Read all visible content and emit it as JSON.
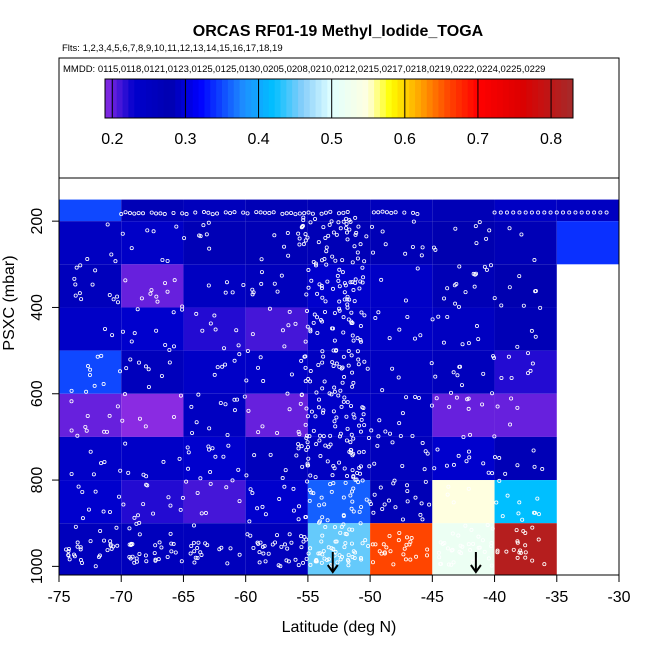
{
  "chart_data": {
    "type": "heatmap",
    "title": "ORCAS RF01-19 Methyl_Iodide_TOGA",
    "flights_label": "Flts: 1,2,3,4,5,6,7,8,9,10,11,12,13,14,15,16,17,18,19",
    "dates_label": "MMDD: 0115,0118,0121,0123,0125,0125,0130,0205,0208,0210,0212,0215,0217,0218,0219,0222,0224,0225,0229",
    "xlabel": "Latitude (deg N)",
    "ylabel": "PSXC (mbar)",
    "xlim": [
      -75,
      -30
    ],
    "ylim": [
      1020,
      100
    ],
    "y_reversed": true,
    "x_ticks": [
      -75,
      -70,
      -65,
      -60,
      -55,
      -50,
      -45,
      -40,
      -35,
      -30
    ],
    "x_tick_labels": [
      "-75",
      "-70",
      "-65",
      "-60",
      "-55",
      "-50",
      "-45",
      "-40",
      "-35",
      "-30"
    ],
    "y_ticks": [
      200,
      400,
      600,
      800,
      1000
    ],
    "y_tick_labels": [
      "200",
      "400",
      "600",
      "800",
      "1000"
    ],
    "colorbar": {
      "range": [
        0.19,
        0.83
      ],
      "ticks": [
        0.2,
        0.3,
        0.4,
        0.5,
        0.6,
        0.7,
        0.8
      ],
      "tick_labels": [
        "0.2",
        "0.3",
        "0.4",
        "0.5",
        "0.6",
        "0.7",
        "0.8"
      ],
      "stops": [
        [
          0.19,
          "#8a2be2"
        ],
        [
          0.23,
          "#0000cd"
        ],
        [
          0.28,
          "#0000b0"
        ],
        [
          0.32,
          "#0000ff"
        ],
        [
          0.38,
          "#1e90ff"
        ],
        [
          0.42,
          "#00bfff"
        ],
        [
          0.46,
          "#87cefa"
        ],
        [
          0.5,
          "#e0ffff"
        ],
        [
          0.55,
          "#ffffe0"
        ],
        [
          0.58,
          "#ffff00"
        ],
        [
          0.62,
          "#ffa500"
        ],
        [
          0.66,
          "#ff4500"
        ],
        [
          0.7,
          "#ff0000"
        ],
        [
          0.76,
          "#dc0000"
        ],
        [
          0.83,
          "#a52a2a"
        ]
      ]
    },
    "lat_bins": [
      -75,
      -70,
      -65,
      -60,
      -55,
      -50,
      -45,
      -40,
      -35
    ],
    "pressure_bins": [
      100,
      150,
      200,
      250,
      300,
      350,
      400,
      450,
      500,
      550,
      600,
      650,
      700,
      750,
      800,
      850,
      900,
      950,
      1000
    ],
    "cell_values": [
      {
        "lat": -75,
        "p_top": 150,
        "p_bot": 200,
        "value": 0.35
      },
      {
        "lat": -70,
        "p_top": 150,
        "p_bot": 200,
        "value": 0.27
      },
      {
        "lat": -65,
        "p_top": 150,
        "p_bot": 200,
        "value": 0.26
      },
      {
        "lat": -60,
        "p_top": 150,
        "p_bot": 200,
        "value": 0.27
      },
      {
        "lat": -55,
        "p_top": 150,
        "p_bot": 200,
        "value": 0.27
      },
      {
        "lat": -50,
        "p_top": 150,
        "p_bot": 200,
        "value": 0.26
      },
      {
        "lat": -45,
        "p_top": 150,
        "p_bot": 200,
        "value": 0.27
      },
      {
        "lat": -40,
        "p_top": 150,
        "p_bot": 200,
        "value": 0.29
      },
      {
        "lat": -35,
        "p_top": 150,
        "p_bot": 200,
        "value": 0.25
      },
      {
        "lat": -75,
        "p_top": 200,
        "p_bot": 300,
        "value": 0.25
      },
      {
        "lat": -70,
        "p_top": 200,
        "p_bot": 300,
        "value": 0.24
      },
      {
        "lat": -65,
        "p_top": 200,
        "p_bot": 300,
        "value": 0.27
      },
      {
        "lat": -60,
        "p_top": 200,
        "p_bot": 300,
        "value": 0.27
      },
      {
        "lat": -55,
        "p_top": 200,
        "p_bot": 300,
        "value": 0.27
      },
      {
        "lat": -50,
        "p_top": 200,
        "p_bot": 300,
        "value": 0.27
      },
      {
        "lat": -45,
        "p_top": 200,
        "p_bot": 300,
        "value": 0.28
      },
      {
        "lat": -40,
        "p_top": 200,
        "p_bot": 300,
        "value": 0.27
      },
      {
        "lat": -35,
        "p_top": 200,
        "p_bot": 300,
        "value": 0.34
      },
      {
        "lat": -75,
        "p_top": 300,
        "p_bot": 400,
        "value": 0.26
      },
      {
        "lat": -70,
        "p_top": 300,
        "p_bot": 400,
        "value": 0.2
      },
      {
        "lat": -65,
        "p_top": 300,
        "p_bot": 400,
        "value": 0.25
      },
      {
        "lat": -60,
        "p_top": 300,
        "p_bot": 400,
        "value": 0.26
      },
      {
        "lat": -55,
        "p_top": 300,
        "p_bot": 400,
        "value": 0.23
      },
      {
        "lat": -50,
        "p_top": 300,
        "p_bot": 400,
        "value": 0.24
      },
      {
        "lat": -45,
        "p_top": 300,
        "p_bot": 400,
        "value": 0.27
      },
      {
        "lat": -40,
        "p_top": 300,
        "p_bot": 400,
        "value": 0.28
      },
      {
        "lat": -75,
        "p_top": 400,
        "p_bot": 500,
        "value": 0.24
      },
      {
        "lat": -70,
        "p_top": 400,
        "p_bot": 500,
        "value": 0.23
      },
      {
        "lat": -65,
        "p_top": 400,
        "p_bot": 500,
        "value": 0.22
      },
      {
        "lat": -60,
        "p_top": 400,
        "p_bot": 500,
        "value": 0.21
      },
      {
        "lat": -55,
        "p_top": 400,
        "p_bot": 500,
        "value": 0.24
      },
      {
        "lat": -50,
        "p_top": 400,
        "p_bot": 500,
        "value": 0.24
      },
      {
        "lat": -45,
        "p_top": 400,
        "p_bot": 500,
        "value": 0.25
      },
      {
        "lat": -40,
        "p_top": 400,
        "p_bot": 500,
        "value": 0.27
      },
      {
        "lat": -75,
        "p_top": 500,
        "p_bot": 600,
        "value": 0.35
      },
      {
        "lat": -70,
        "p_top": 500,
        "p_bot": 600,
        "value": 0.26
      },
      {
        "lat": -65,
        "p_top": 500,
        "p_bot": 600,
        "value": 0.24
      },
      {
        "lat": -60,
        "p_top": 500,
        "p_bot": 600,
        "value": 0.24
      },
      {
        "lat": -55,
        "p_top": 500,
        "p_bot": 600,
        "value": 0.25
      },
      {
        "lat": -50,
        "p_top": 500,
        "p_bot": 600,
        "value": 0.25
      },
      {
        "lat": -45,
        "p_top": 500,
        "p_bot": 600,
        "value": 0.26
      },
      {
        "lat": -40,
        "p_top": 500,
        "p_bot": 600,
        "value": 0.22
      },
      {
        "lat": -75,
        "p_top": 600,
        "p_bot": 700,
        "value": 0.2
      },
      {
        "lat": -70,
        "p_top": 600,
        "p_bot": 700,
        "value": 0.19
      },
      {
        "lat": -65,
        "p_top": 600,
        "p_bot": 700,
        "value": 0.25
      },
      {
        "lat": -60,
        "p_top": 600,
        "p_bot": 700,
        "value": 0.2
      },
      {
        "lat": -55,
        "p_top": 600,
        "p_bot": 700,
        "value": 0.24
      },
      {
        "lat": -50,
        "p_top": 600,
        "p_bot": 700,
        "value": 0.25
      },
      {
        "lat": -45,
        "p_top": 600,
        "p_bot": 700,
        "value": 0.2
      },
      {
        "lat": -40,
        "p_top": 600,
        "p_bot": 700,
        "value": 0.2
      },
      {
        "lat": -75,
        "p_top": 700,
        "p_bot": 800,
        "value": 0.24
      },
      {
        "lat": -70,
        "p_top": 700,
        "p_bot": 800,
        "value": 0.24
      },
      {
        "lat": -65,
        "p_top": 700,
        "p_bot": 800,
        "value": 0.23
      },
      {
        "lat": -60,
        "p_top": 700,
        "p_bot": 800,
        "value": 0.26
      },
      {
        "lat": -55,
        "p_top": 700,
        "p_bot": 800,
        "value": 0.25
      },
      {
        "lat": -50,
        "p_top": 700,
        "p_bot": 800,
        "value": 0.26
      },
      {
        "lat": -45,
        "p_top": 700,
        "p_bot": 800,
        "value": 0.23
      },
      {
        "lat": -40,
        "p_top": 700,
        "p_bot": 800,
        "value": 0.27
      },
      {
        "lat": -75,
        "p_top": 800,
        "p_bot": 900,
        "value": 0.23
      },
      {
        "lat": -70,
        "p_top": 800,
        "p_bot": 900,
        "value": 0.22
      },
      {
        "lat": -65,
        "p_top": 800,
        "p_bot": 900,
        "value": 0.21
      },
      {
        "lat": -60,
        "p_top": 800,
        "p_bot": 900,
        "value": 0.23
      },
      {
        "lat": -55,
        "p_top": 800,
        "p_bot": 900,
        "value": 0.36
      },
      {
        "lat": -50,
        "p_top": 800,
        "p_bot": 900,
        "value": 0.27
      },
      {
        "lat": -45,
        "p_top": 800,
        "p_bot": 900,
        "value": 0.55
      },
      {
        "lat": -40,
        "p_top": 800,
        "p_bot": 900,
        "value": 0.42
      },
      {
        "lat": -75,
        "p_top": 900,
        "p_bot": 1000,
        "value": 0.26
      },
      {
        "lat": -70,
        "p_top": 900,
        "p_bot": 1000,
        "value": 0.26
      },
      {
        "lat": -65,
        "p_top": 900,
        "p_bot": 1000,
        "value": 0.26
      },
      {
        "lat": -60,
        "p_top": 900,
        "p_bot": 1000,
        "value": 0.26
      },
      {
        "lat": -55,
        "p_top": 900,
        "p_bot": 1000,
        "value": 0.45
      },
      {
        "lat": -50,
        "p_top": 900,
        "p_bot": 1000,
        "value": 0.66
      },
      {
        "lat": -45,
        "p_top": 900,
        "p_bot": 1000,
        "value": 0.52
      },
      {
        "lat": -40,
        "p_top": 900,
        "p_bot": 1000,
        "value": 0.81
      }
    ],
    "arrows": [
      {
        "lat": -53,
        "pressure": 1020
      },
      {
        "lat": -41.5,
        "pressure": 1020
      }
    ],
    "grid": false,
    "legend": "colorbar-top"
  }
}
